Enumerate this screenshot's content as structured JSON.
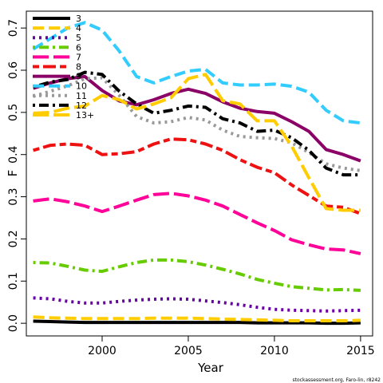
{
  "chart_data": {
    "type": "line",
    "title": "",
    "xlabel": "Year",
    "ylabel": "F",
    "xlim": [
      1995.6,
      2015.7
    ],
    "ylim": [
      -0.03,
      0.74
    ],
    "xticks": [
      2000,
      2005,
      2010,
      2015
    ],
    "yticks": [
      0.0,
      0.1,
      0.2,
      0.3,
      0.4,
      0.5,
      0.6,
      0.7
    ],
    "ytick_labels": [
      "0.0",
      "0.1",
      "0.2",
      "0.3",
      "0.4",
      "0.5",
      "0.6",
      "0.7"
    ],
    "grid": false,
    "legend_position": "top-left",
    "credit": "stockassessment.org, Faro-lin, r8242",
    "x": [
      1996,
      1997,
      1998,
      1999,
      2000,
      2001,
      2002,
      2003,
      2004,
      2005,
      2006,
      2007,
      2008,
      2009,
      2010,
      2011,
      2012,
      2013,
      2014,
      2015
    ],
    "series": [
      {
        "name": "3",
        "color": "#000000",
        "dash": "solid",
        "values": [
          0.005,
          0.004,
          0.003,
          0.002,
          0.002,
          0.002,
          0.002,
          0.002,
          0.002,
          0.002,
          0.002,
          0.002,
          0.002,
          0.001,
          0.001,
          0.001,
          0.001,
          0.0,
          0.0,
          0.001
        ]
      },
      {
        "name": "4",
        "color": "#FFCC00",
        "dash": "long",
        "values": [
          0.015,
          0.013,
          0.012,
          0.011,
          0.011,
          0.011,
          0.011,
          0.012,
          0.012,
          0.012,
          0.011,
          0.01,
          0.009,
          0.008,
          0.007,
          0.006,
          0.006,
          0.006,
          0.006,
          0.007
        ]
      },
      {
        "name": "5",
        "color": "#6A00A8",
        "dash": "dot",
        "values": [
          0.06,
          0.058,
          0.052,
          0.048,
          0.048,
          0.052,
          0.055,
          0.057,
          0.058,
          0.057,
          0.053,
          0.049,
          0.044,
          0.038,
          0.033,
          0.031,
          0.03,
          0.029,
          0.03,
          0.031
        ]
      },
      {
        "name": "6",
        "color": "#66CC00",
        "dash": "dotdash",
        "values": [
          0.144,
          0.143,
          0.135,
          0.126,
          0.123,
          0.134,
          0.144,
          0.15,
          0.15,
          0.146,
          0.138,
          0.128,
          0.117,
          0.104,
          0.095,
          0.087,
          0.083,
          0.079,
          0.08,
          0.078
        ]
      },
      {
        "name": "7",
        "color": "#FF0099",
        "dash": "longdash",
        "values": [
          0.29,
          0.295,
          0.288,
          0.278,
          0.265,
          0.278,
          0.292,
          0.305,
          0.308,
          0.302,
          0.292,
          0.278,
          0.258,
          0.238,
          0.22,
          0.198,
          0.186,
          0.176,
          0.174,
          0.165
        ]
      },
      {
        "name": "8",
        "color": "#EE1111",
        "dash": "twodash",
        "values": [
          0.41,
          0.422,
          0.425,
          0.422,
          0.4,
          0.402,
          0.407,
          0.425,
          0.437,
          0.435,
          0.425,
          0.41,
          0.388,
          0.37,
          0.357,
          0.328,
          0.303,
          0.278,
          0.275,
          0.26
        ]
      },
      {
        "name": "9",
        "color": "#8B0066",
        "dash": "solid",
        "values": [
          0.557,
          0.57,
          0.58,
          0.585,
          0.552,
          0.527,
          0.518,
          0.53,
          0.545,
          0.555,
          0.545,
          0.525,
          0.51,
          0.502,
          0.498,
          0.478,
          0.455,
          0.412,
          0.4,
          0.385
        ]
      },
      {
        "name": "10",
        "color": "#33CCFF",
        "dash": "long",
        "values": [
          0.65,
          0.675,
          0.7,
          0.713,
          0.695,
          0.645,
          0.585,
          0.57,
          0.585,
          0.598,
          0.602,
          0.57,
          0.565,
          0.565,
          0.567,
          0.562,
          0.548,
          0.505,
          0.48,
          0.475
        ]
      },
      {
        "name": "11",
        "color": "#999999",
        "dash": "dot",
        "values": [
          0.538,
          0.55,
          0.563,
          0.58,
          0.582,
          0.54,
          0.49,
          0.475,
          0.478,
          0.488,
          0.482,
          0.458,
          0.443,
          0.44,
          0.438,
          0.428,
          0.405,
          0.378,
          0.368,
          0.362
        ]
      },
      {
        "name": "12",
        "color": "#000000",
        "dash": "dotdash",
        "values": [
          0.56,
          0.572,
          0.578,
          0.595,
          0.59,
          0.55,
          0.52,
          0.498,
          0.505,
          0.515,
          0.512,
          0.485,
          0.475,
          0.455,
          0.458,
          0.44,
          0.41,
          0.368,
          0.352,
          0.352
        ]
      },
      {
        "name": "13+",
        "color": "#FFCC00",
        "dash": "longdash",
        "values": [
          0.498,
          0.5,
          0.51,
          0.515,
          0.54,
          0.53,
          0.508,
          0.52,
          0.535,
          0.58,
          0.59,
          0.528,
          0.52,
          0.48,
          0.48,
          0.42,
          0.345,
          0.272,
          0.268,
          0.268
        ]
      }
    ]
  }
}
